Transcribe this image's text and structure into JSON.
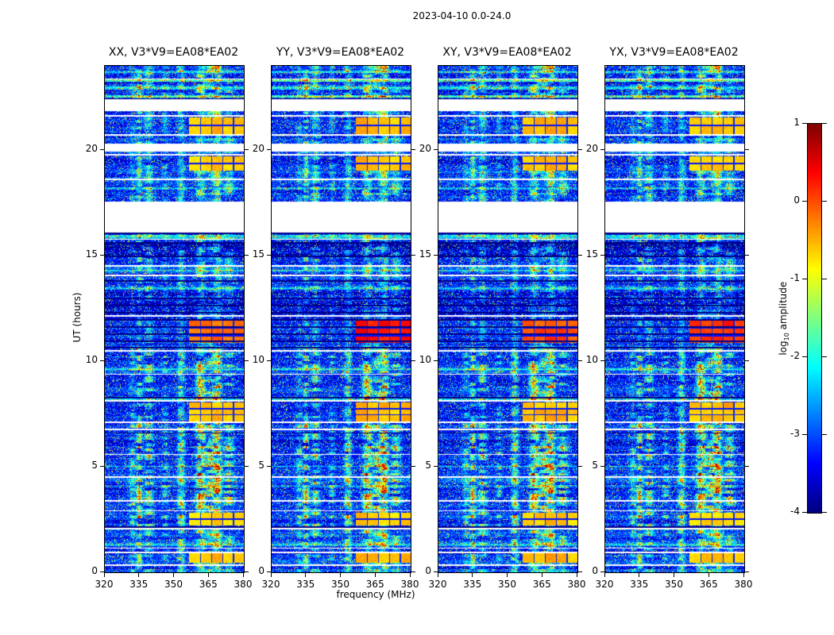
{
  "figure": {
    "title": "2023-04-10 0.0-24.0"
  },
  "chart_data": {
    "type": "heatmap",
    "title": "2023-04-10 0.0-24.0",
    "description": "Four cross-correlation dynamic spectra (spectrograms) of log10 amplitude versus frequency (MHz) and UT (hours), jet colormap, with white data gaps and bright RFI/calibration blocks near 357-380 MHz",
    "panels": [
      {
        "title": "XX, V3*V9=EA08*EA02"
      },
      {
        "title": "YY, V3*V9=EA08*EA02"
      },
      {
        "title": "XY, V3*V9=EA08*EA02"
      },
      {
        "title": "YX, V3*V9=EA08*EA02"
      }
    ],
    "x_axis": {
      "label": "frequency (MHz)",
      "min": 320,
      "max": 380,
      "ticks": [
        320,
        335,
        350,
        365,
        380
      ]
    },
    "y_axis": {
      "label": "UT (hours)",
      "min": 0,
      "max": 24,
      "ticks": [
        0,
        5,
        10,
        15,
        20
      ]
    },
    "colorbar": {
      "label_prefix": "log",
      "label_sub": "10",
      "label_suffix": " amplitude",
      "min": -4,
      "max": 1,
      "ticks": [
        1,
        0,
        -1,
        -2,
        -3,
        -4
      ],
      "colormap": "jet"
    },
    "texture": {
      "background_level": -3.35,
      "noise_amp": 0.85,
      "speckle_gain": 3.0,
      "n_streaks": 16,
      "streak_fmin": 322,
      "streak_fmax": 380
    },
    "data_gaps": [
      {
        "t0": 16.1,
        "t1": 17.55
      },
      {
        "t0": 19.92,
        "t1": 20.32
      },
      {
        "t0": 21.87,
        "t1": 22.42
      }
    ],
    "white_lines": [
      0.33,
      0.95,
      1.15,
      2.06,
      2.92,
      3.38,
      4.52,
      5.58,
      6.78,
      7.1,
      8.12,
      9.38,
      10.5,
      12.16,
      14.06,
      14.52,
      15.78,
      18.62,
      19.78,
      20.72,
      21.62,
      23.38
    ],
    "dark_lines": [
      2.14,
      6.6,
      8.28,
      10.64,
      10.96,
      11.3,
      11.63,
      11.96,
      12.3,
      12.64,
      12.97,
      13.8,
      14.97,
      15.62,
      16.06,
      22.44
    ],
    "bright_blocks": [
      {
        "t0": 0.45,
        "t1": 0.92,
        "f0": 356.5,
        "f1": 380,
        "level": -0.55,
        "rows": 1
      },
      {
        "t0": 2.22,
        "t1": 2.84,
        "f0": 356.5,
        "f1": 380,
        "level": -0.65,
        "rows": 2
      },
      {
        "t0": 7.16,
        "t1": 8.06,
        "f0": 356.5,
        "f1": 380,
        "level": -0.55,
        "rows": 3
      },
      {
        "t0": 10.86,
        "t1": 11.92,
        "f0": 356.5,
        "f1": 380,
        "level": -0.12,
        "rows": 3,
        "panel_boost": [
          0.0,
          0.4,
          0.12,
          0.28
        ]
      },
      {
        "t0": 19.02,
        "t1": 19.72,
        "f0": 356.5,
        "f1": 380,
        "level": -0.6,
        "rows": 2
      },
      {
        "t0": 20.78,
        "t1": 21.56,
        "f0": 356.5,
        "f1": 380,
        "level": -0.55,
        "rows": 2
      }
    ],
    "dark_regions": [
      {
        "t0": 11.92,
        "t1": 13.28,
        "delta": -0.3
      },
      {
        "t0": 14.97,
        "t1": 15.64,
        "delta": -0.42
      }
    ],
    "cyan_rows": [
      {
        "t": 1.3,
        "s": 0.7,
        "dt": 0.05
      },
      {
        "t": 4.1,
        "s": 0.6,
        "dt": 0.05
      },
      {
        "t": 5.0,
        "s": 0.6,
        "dt": 0.05
      },
      {
        "t": 8.2,
        "s": 1.0,
        "dt": 0.06
      },
      {
        "t": 9.6,
        "s": 0.7,
        "dt": 0.06
      },
      {
        "t": 13.45,
        "s": 0.8,
        "dt": 0.06
      },
      {
        "t": 14.3,
        "s": 0.7,
        "dt": 0.05
      },
      {
        "t": 15.9,
        "s": 0.9,
        "dt": 0.1
      },
      {
        "t": 18.2,
        "s": 0.7,
        "dt": 0.05
      },
      {
        "t": 22.55,
        "s": 1.2,
        "dt": 0.07
      },
      {
        "t": 22.95,
        "s": 0.9,
        "dt": 0.06
      },
      {
        "t": 23.3,
        "s": 1.3,
        "dt": 0.07
      },
      {
        "t": 23.72,
        "s": 0.8,
        "dt": 0.05
      }
    ],
    "streak_zones": [
      {
        "t0": 0.0,
        "t1": 2.2,
        "g": 0.9
      },
      {
        "t0": 2.2,
        "t1": 7.15,
        "g": 1.25
      },
      {
        "t0": 7.15,
        "t1": 8.1,
        "g": 0.7
      },
      {
        "t0": 8.1,
        "t1": 10.6,
        "g": 1.05
      },
      {
        "t0": 10.6,
        "t1": 13.3,
        "g": 0.5
      },
      {
        "t0": 13.3,
        "t1": 16.1,
        "g": 0.75
      },
      {
        "t0": 17.55,
        "t1": 19.9,
        "g": 0.8
      },
      {
        "t0": 20.3,
        "t1": 21.9,
        "g": 0.8
      },
      {
        "t0": 22.4,
        "t1": 24.0,
        "g": 0.9
      }
    ]
  }
}
